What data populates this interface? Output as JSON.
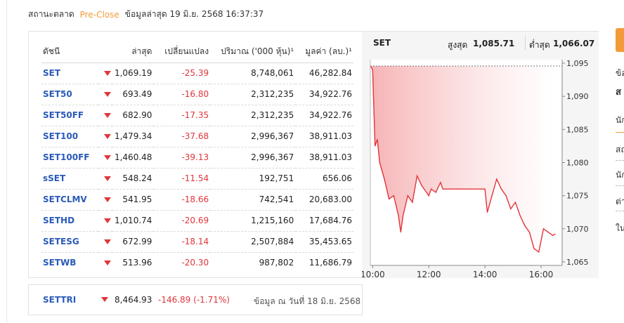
{
  "status": {
    "label": "สถานะตลาด",
    "state": "Pre-Close",
    "updated": "ข้อมูลล่าสุด 19 มิ.ย. 2568 16:37:37"
  },
  "table": {
    "headers": [
      "ดัชนี",
      "ล่าสุด",
      "เปลี่ยนแปลง",
      "ปริมาณ ('000 หุ้น)¹",
      "มูลค่า (ลบ.)¹"
    ],
    "rows": [
      {
        "name": "SET",
        "last": "1,069.19",
        "change": "-25.39",
        "volume": "8,748,061",
        "value": "46,282.84"
      },
      {
        "name": "SET50",
        "last": "693.49",
        "change": "-16.80",
        "volume": "2,312,235",
        "value": "34,922.76"
      },
      {
        "name": "SET50FF",
        "last": "682.90",
        "change": "-17.35",
        "volume": "2,312,235",
        "value": "34,922.76"
      },
      {
        "name": "SET100",
        "last": "1,479.34",
        "change": "-37.68",
        "volume": "2,996,367",
        "value": "38,911.03"
      },
      {
        "name": "SET100FF",
        "last": "1,460.48",
        "change": "-39.13",
        "volume": "2,996,367",
        "value": "38,911.03"
      },
      {
        "name": "sSET",
        "last": "548.24",
        "change": "-11.54",
        "volume": "192,751",
        "value": "656.06"
      },
      {
        "name": "SETCLMV",
        "last": "541.95",
        "change": "-18.66",
        "volume": "742,541",
        "value": "20,683.00"
      },
      {
        "name": "SETHD",
        "last": "1,010.74",
        "change": "-20.69",
        "volume": "1,215,160",
        "value": "17,684.76"
      },
      {
        "name": "SETESG",
        "last": "672.99",
        "change": "-18.14",
        "volume": "2,507,884",
        "value": "35,453.65"
      },
      {
        "name": "SETWB",
        "last": "513.96",
        "change": "-20.30",
        "volume": "987,802",
        "value": "11,686.79"
      }
    ]
  },
  "chart_header": {
    "name": "SET",
    "high_label": "สูงสุด",
    "high_value": "1,085.71",
    "low_label": "ต่ำสุด",
    "low_value": "1,066.07"
  },
  "chart_data": {
    "type": "area",
    "x_ticks": [
      "10:00",
      "12:00",
      "14:00",
      "16:00"
    ],
    "y_ticks": [
      "1,095",
      "1,090",
      "1,085",
      "1,080",
      "1,075",
      "1,070",
      "1,065"
    ],
    "ylim": [
      1065,
      1095
    ],
    "prev_close": 1094.58,
    "series": [
      {
        "x": [
          "09:55",
          "10:00",
          "10:05",
          "10:10",
          "10:15",
          "10:25",
          "10:35",
          "10:45",
          "10:55",
          "11:00",
          "11:05",
          "11:15",
          "11:25",
          "11:35",
          "11:45",
          "11:55",
          "12:00",
          "12:05",
          "12:15",
          "12:25",
          "12:30",
          "14:00",
          "14:05",
          "14:15",
          "14:25",
          "14:35",
          "14:45",
          "14:55",
          "15:05",
          "15:15",
          "15:25",
          "15:35",
          "15:45",
          "15:55",
          "16:05",
          "16:15",
          "16:25",
          "16:30"
        ],
        "values": [
          1094.6,
          1094.0,
          1082.5,
          1083.5,
          1080.0,
          1077.5,
          1074.5,
          1075.0,
          1072.0,
          1069.5,
          1072.0,
          1075.0,
          1074.0,
          1078.0,
          1076.5,
          1075.5,
          1075.0,
          1076.0,
          1075.5,
          1077.0,
          1076.0,
          1076.0,
          1072.5,
          1075.0,
          1077.5,
          1076.0,
          1075.0,
          1073.0,
          1074.0,
          1072.0,
          1070.5,
          1069.5,
          1067.0,
          1066.5,
          1070.0,
          1069.5,
          1069.0,
          1069.2
        ]
      }
    ],
    "colors": {
      "line": "#e0353b",
      "area_top": "#f6b3b5",
      "area_bottom": "#ffffff",
      "prev_close": "#777777"
    }
  },
  "settri": {
    "name": "SETTRI",
    "value": "8,464.93",
    "change": "-146.89 (-1.71%)",
    "date": "ข้อมูล ณ วันที่ 18 มิ.ย. 2568"
  },
  "right": {
    "l1": "ข้อ",
    "l2": "ส",
    "l3": "นัก",
    "l4": "สถ",
    "l5": "นัก",
    "l6": "ต่า",
    "l7": "ใน"
  }
}
